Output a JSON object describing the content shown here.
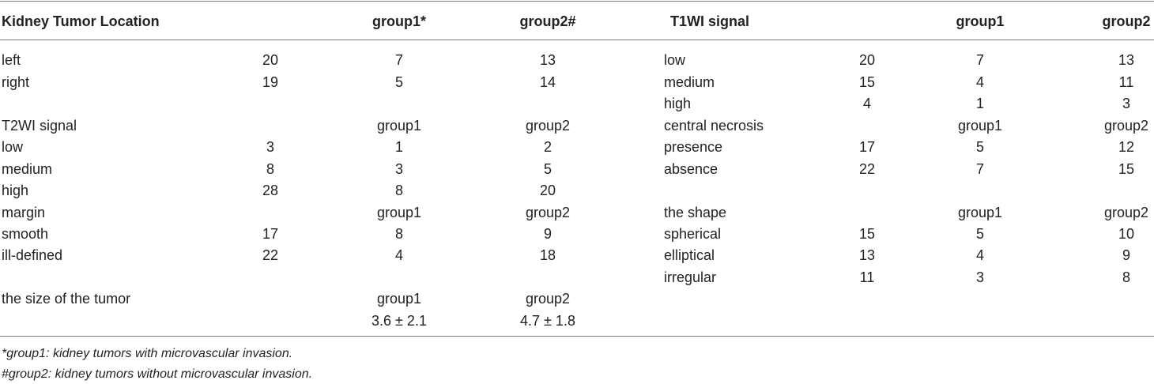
{
  "table": {
    "header": [
      "Kidney Tumor Location",
      null,
      "group1*",
      "group2#",
      "T1WI signal",
      null,
      "group1",
      "group2"
    ],
    "rows": [
      [
        "left",
        20,
        7,
        13,
        "low",
        20,
        7,
        13
      ],
      [
        "right",
        19,
        5,
        14,
        "medium",
        15,
        4,
        11
      ],
      [
        null,
        null,
        null,
        null,
        "high",
        4,
        1,
        3
      ],
      [
        "T2WI signal",
        null,
        "group1",
        "group2",
        "central necrosis",
        null,
        "group1",
        "group2"
      ],
      [
        "low",
        3,
        1,
        2,
        "presence",
        17,
        5,
        12
      ],
      [
        "medium",
        8,
        3,
        5,
        "absence",
        22,
        7,
        15
      ],
      [
        "high",
        28,
        8,
        20,
        null,
        null,
        null,
        null
      ],
      [
        "margin",
        null,
        "group1",
        "group2",
        "the shape",
        null,
        "group1",
        "group2"
      ],
      [
        "smooth",
        17,
        8,
        9,
        "spherical",
        15,
        5,
        10
      ],
      [
        "ill-defined",
        22,
        4,
        18,
        "elliptical",
        13,
        4,
        9
      ],
      [
        null,
        null,
        null,
        null,
        "irregular",
        11,
        3,
        8
      ],
      [
        "the size of the tumor",
        null,
        "group1",
        "group2",
        null,
        null,
        null,
        null
      ],
      [
        null,
        null,
        "3.6 ± 2.1",
        "4.7 ± 1.8",
        null,
        null,
        null,
        null
      ]
    ]
  },
  "footnotes": [
    "*group1: kidney tumors with microvascular invasion.",
    "#group2: kidney tumors without microvascular invasion."
  ]
}
